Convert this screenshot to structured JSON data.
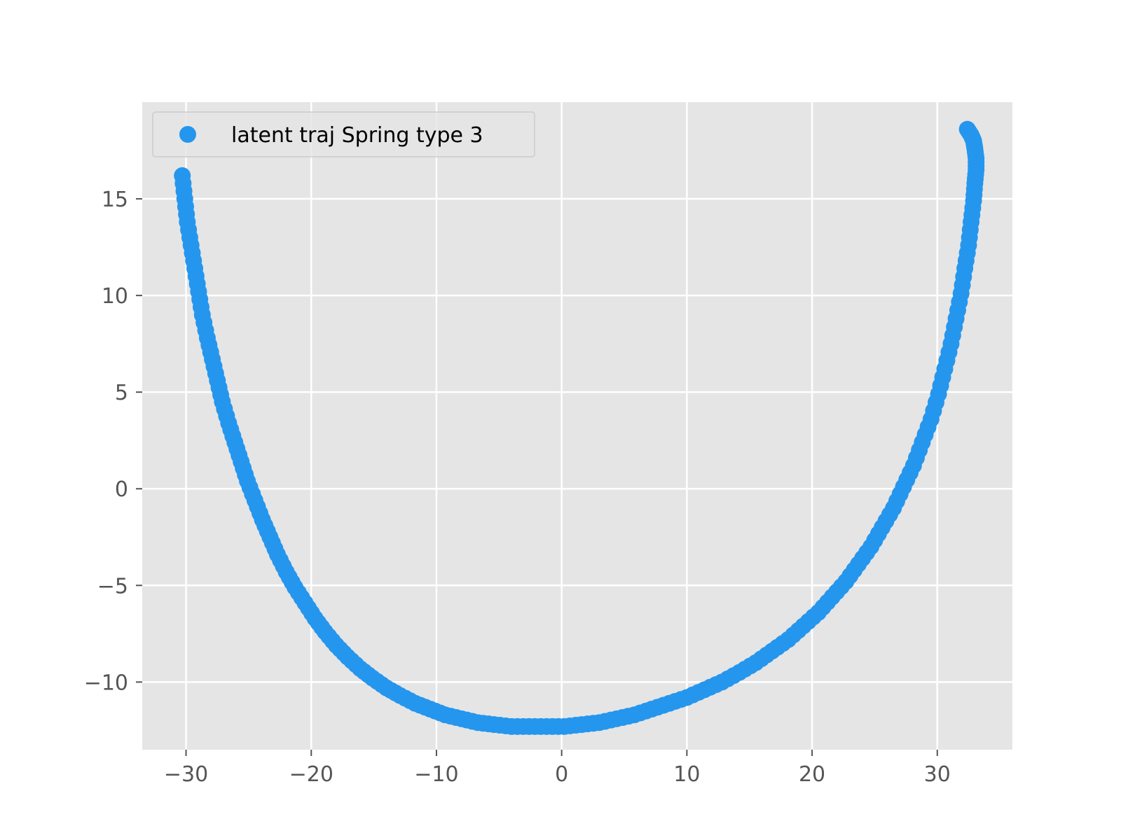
{
  "chart_data": {
    "type": "scatter",
    "title": "",
    "xlabel": "",
    "ylabel": "",
    "xlim": [
      -33.5,
      36
    ],
    "ylim": [
      -13.5,
      20
    ],
    "xticks": [
      -30,
      -20,
      -10,
      0,
      10,
      20,
      30
    ],
    "yticks": [
      -10,
      -5,
      0,
      5,
      10,
      15
    ],
    "grid": true,
    "legend_position": "top-left",
    "series": [
      {
        "name": "latent traj Spring type 3",
        "color": "#2596ee",
        "x": [
          -30.3,
          -30.1,
          -29.9,
          -29.6,
          -29.3,
          -29.0,
          -28.7,
          -28.3,
          -27.9,
          -27.5,
          -27.1,
          -26.6,
          -26.1,
          -25.6,
          -25.1,
          -24.5,
          -23.9,
          -23.3,
          -22.7,
          -22.0,
          -21.3,
          -20.5,
          -19.7,
          -18.9,
          -18.0,
          -17.1,
          -16.1,
          -15.1,
          -14.0,
          -12.9,
          -11.7,
          -10.5,
          -9.3,
          -8.0,
          -6.7,
          -5.4,
          -4.0,
          -2.6,
          -1.2,
          0.2,
          1.6,
          3.0,
          4.4,
          5.8,
          7.2,
          8.6,
          10.0,
          11.4,
          12.8,
          14.2,
          15.5,
          16.8,
          18.1,
          19.3,
          20.5,
          21.6,
          22.7,
          23.7,
          24.7,
          25.6,
          26.5,
          27.3,
          28.1,
          28.8,
          29.5,
          30.1,
          30.6,
          31.1,
          31.5,
          31.9,
          32.2,
          32.5,
          32.7,
          32.9,
          33.0,
          33.1,
          33.1,
          33.0,
          32.9,
          32.7,
          32.4
        ],
        "y": [
          16.2,
          15.0,
          13.8,
          12.6,
          11.4,
          10.2,
          9.0,
          7.8,
          6.7,
          5.6,
          4.5,
          3.4,
          2.4,
          1.4,
          0.4,
          -0.6,
          -1.6,
          -2.5,
          -3.4,
          -4.3,
          -5.1,
          -5.9,
          -6.7,
          -7.4,
          -8.1,
          -8.7,
          -9.3,
          -9.8,
          -10.3,
          -10.7,
          -11.1,
          -11.4,
          -11.7,
          -11.9,
          -12.1,
          -12.2,
          -12.3,
          -12.3,
          -12.3,
          -12.3,
          -12.2,
          -12.1,
          -11.9,
          -11.7,
          -11.4,
          -11.1,
          -10.8,
          -10.4,
          -10.0,
          -9.5,
          -9.0,
          -8.4,
          -7.8,
          -7.1,
          -6.4,
          -5.6,
          -4.8,
          -3.9,
          -3.0,
          -2.0,
          -1.0,
          0.1,
          1.2,
          2.4,
          3.6,
          4.9,
          6.2,
          7.5,
          8.8,
          10.1,
          11.4,
          12.6,
          13.8,
          14.9,
          15.8,
          16.5,
          17.1,
          17.6,
          18.0,
          18.3,
          18.6
        ]
      }
    ]
  }
}
